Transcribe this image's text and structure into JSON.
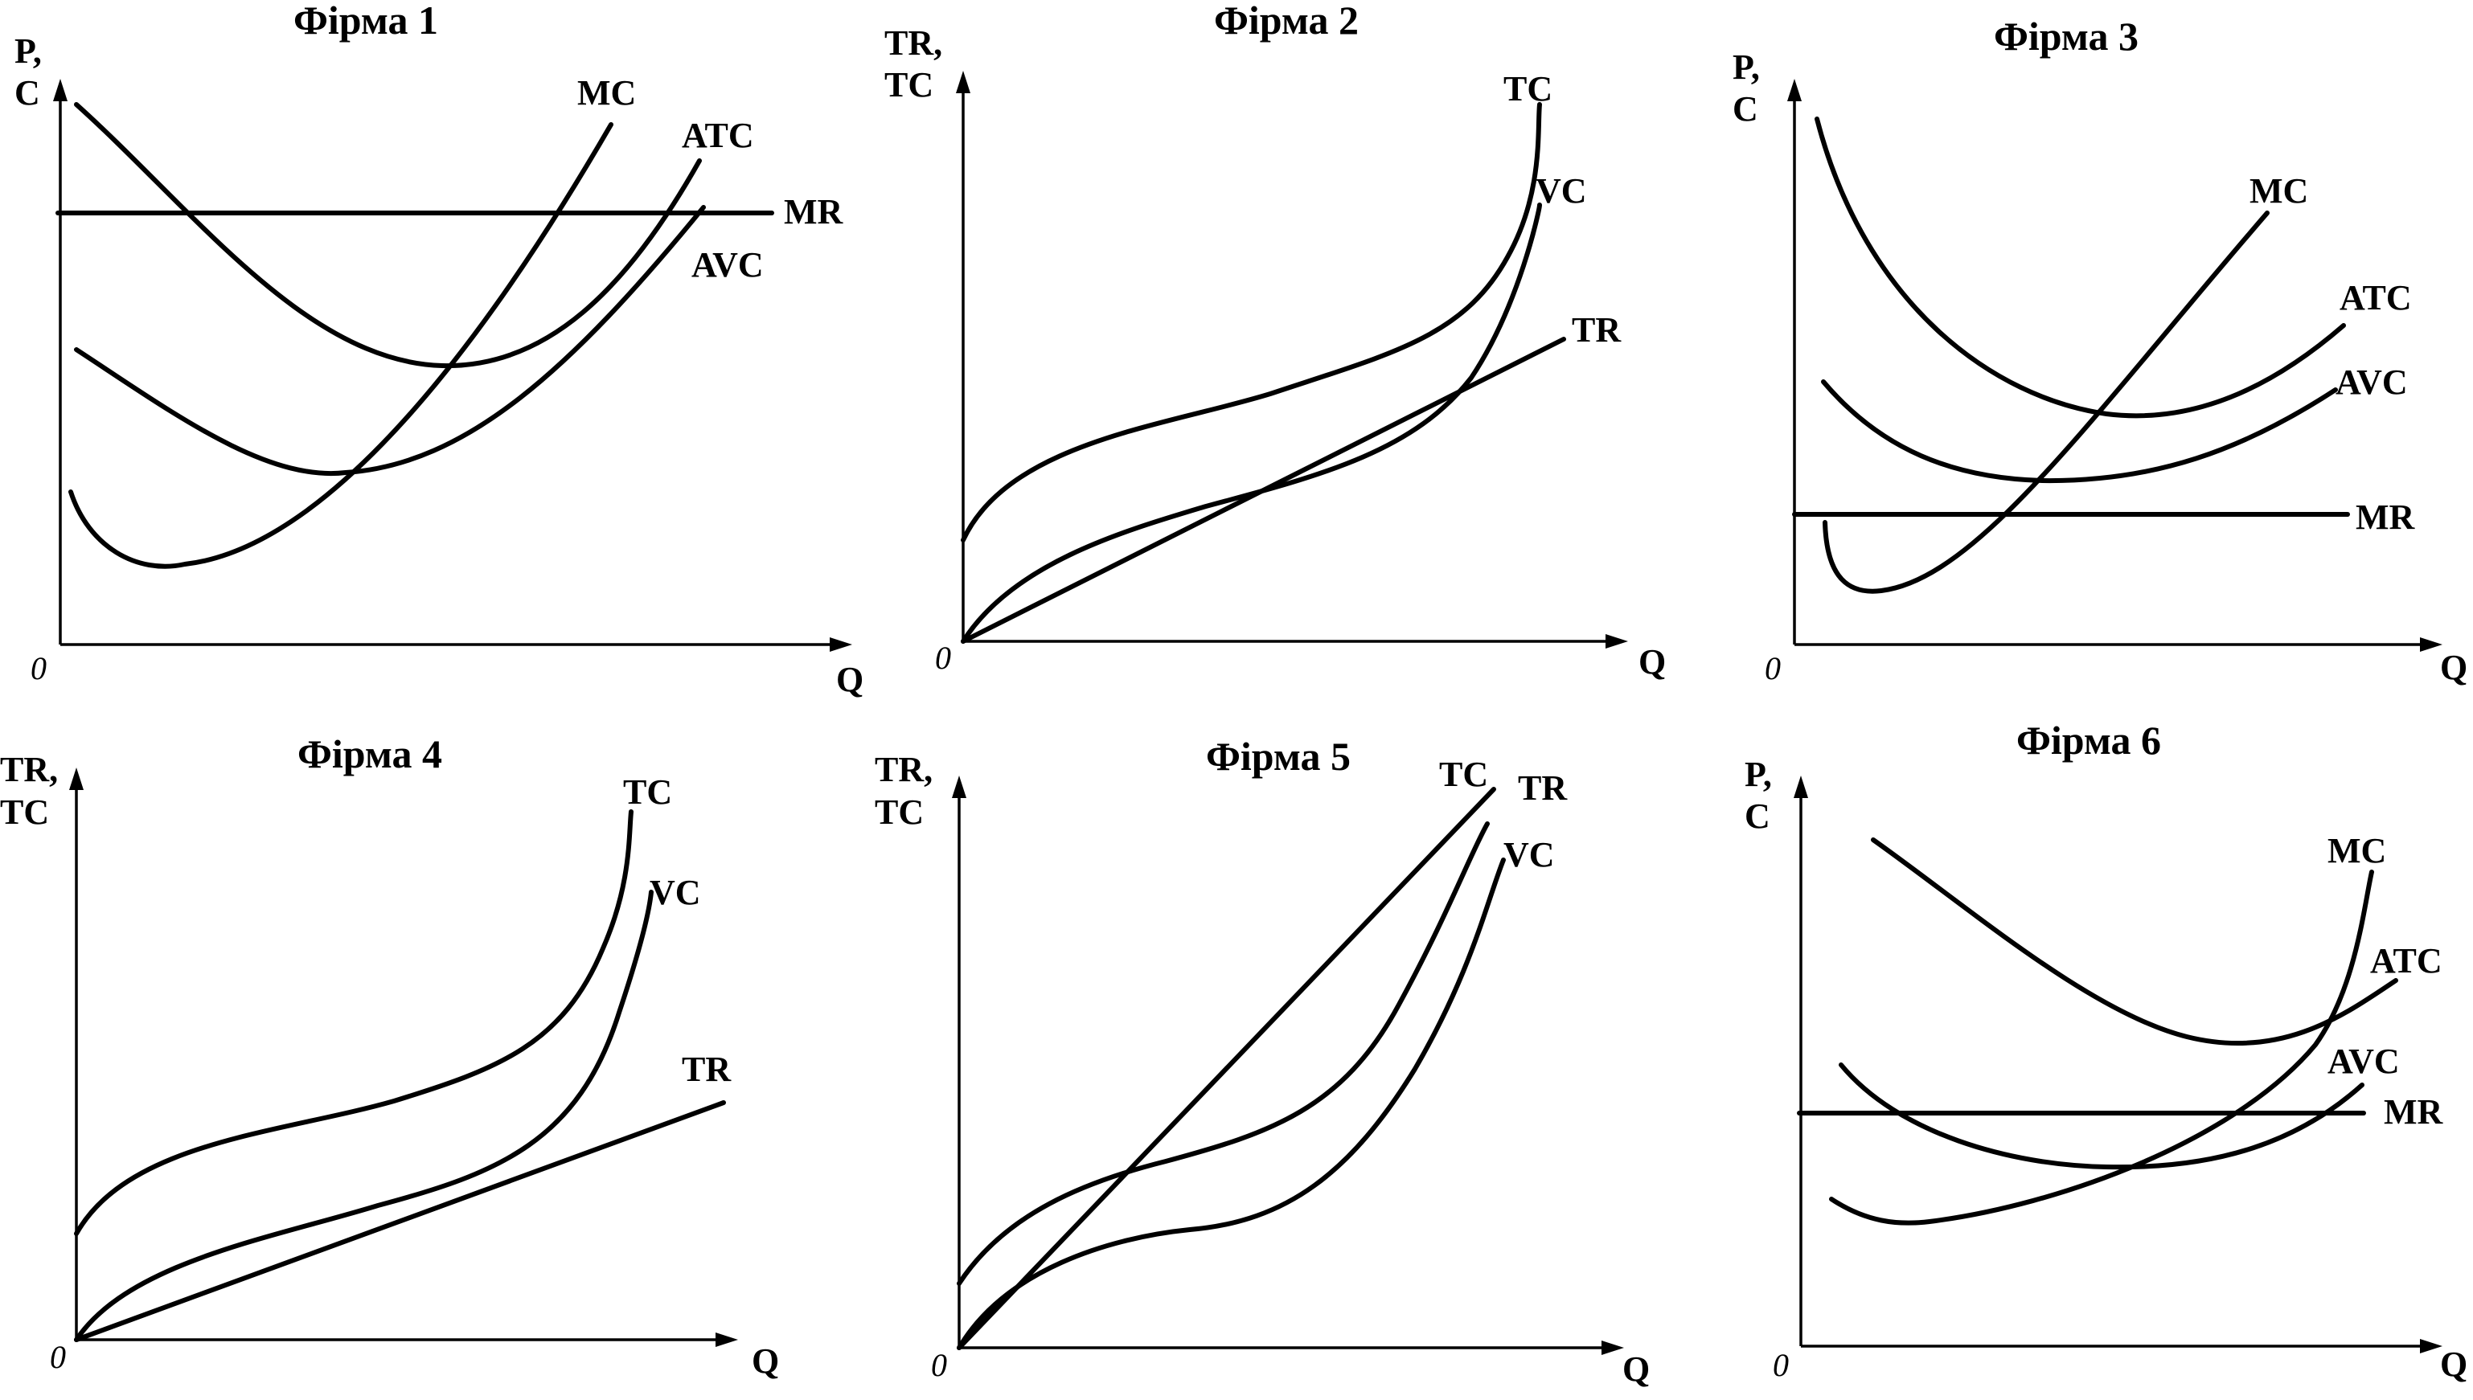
{
  "panels": [
    {
      "title": "Фірма 1",
      "y_axis_label": [
        "P,",
        "C"
      ],
      "x_axis_label": "Q",
      "origin": "0",
      "curves": [
        "MC",
        "ATC",
        "MR",
        "AVC"
      ]
    },
    {
      "title": "Фірма 2",
      "y_axis_label": [
        "TR,",
        "TC"
      ],
      "x_axis_label": "Q",
      "origin": "0",
      "curves": [
        "TC",
        "VC",
        "TR"
      ]
    },
    {
      "title": "Фірма 3",
      "y_axis_label": [
        "P,",
        "C"
      ],
      "x_axis_label": "Q",
      "origin": "0",
      "curves": [
        "MC",
        "ATC",
        "AVC",
        "MR"
      ]
    },
    {
      "title": "Фірма 4",
      "y_axis_label": [
        "TR,",
        "TC"
      ],
      "x_axis_label": "Q",
      "origin": "0",
      "curves": [
        "TC",
        "VC",
        "TR"
      ]
    },
    {
      "title": "Фірма 5",
      "y_axis_label": [
        "TR,",
        "TC"
      ],
      "x_axis_label": "Q",
      "origin": "0",
      "curves": [
        "TC",
        "TR",
        "VC"
      ]
    },
    {
      "title": "Фірма 6",
      "y_axis_label": [
        "P,",
        "C"
      ],
      "x_axis_label": "Q",
      "origin": "0",
      "curves": [
        "MC",
        "ATC",
        "AVC",
        "MR"
      ]
    }
  ]
}
